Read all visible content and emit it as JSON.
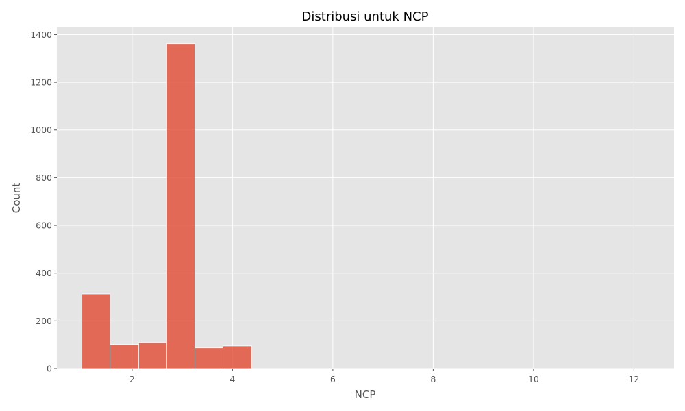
{
  "chart_data": {
    "type": "bar",
    "title": "Distribusi untuk NCP",
    "xlabel": "NCP",
    "ylabel": "Count",
    "xlim": [
      0.5,
      12.8
    ],
    "ylim": [
      0,
      1430
    ],
    "xticks": [
      2,
      4,
      6,
      8,
      10,
      12
    ],
    "yticks": [
      0,
      200,
      400,
      600,
      800,
      1000,
      1200,
      1400
    ],
    "grid": true,
    "bins": [
      {
        "x0": 1.0,
        "x1": 1.56,
        "count": 313
      },
      {
        "x0": 1.56,
        "x1": 2.13,
        "count": 101
      },
      {
        "x0": 2.13,
        "x1": 2.69,
        "count": 109
      },
      {
        "x0": 2.69,
        "x1": 3.25,
        "count": 1362
      },
      {
        "x0": 3.25,
        "x1": 3.81,
        "count": 87
      },
      {
        "x0": 3.81,
        "x1": 4.38,
        "count": 95
      }
    ],
    "colors": {
      "bar": "#E24A33",
      "bar_opacity": 0.8,
      "plot_background": "#E5E5E5",
      "grid": "#FFFFFF"
    }
  }
}
